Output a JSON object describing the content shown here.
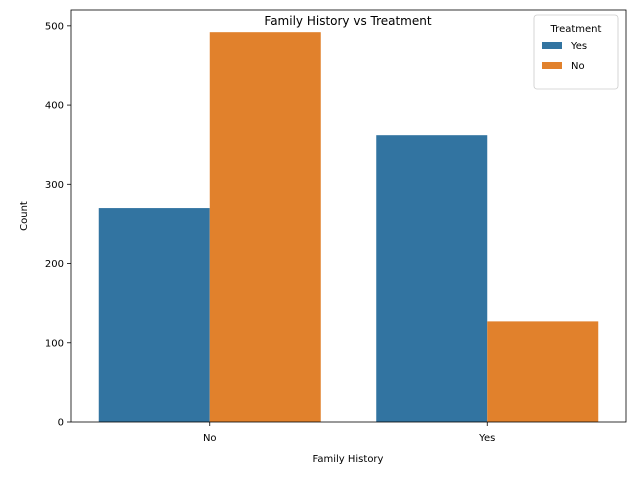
{
  "chart_data": {
    "type": "bar",
    "title": "Family History vs Treatment",
    "xlabel": "Family History",
    "ylabel": "Count",
    "categories": [
      "No",
      "Yes"
    ],
    "series": [
      {
        "name": "Yes",
        "values": [
          270,
          362
        ],
        "color": "#3274a1"
      },
      {
        "name": "No",
        "values": [
          492,
          127
        ],
        "color": "#e1812c"
      }
    ],
    "ylim": [
      0,
      520
    ],
    "yticks": [
      0,
      100,
      200,
      300,
      400,
      500
    ],
    "legend": {
      "title": "Treatment",
      "placement": "top-right"
    },
    "grid": false
  }
}
